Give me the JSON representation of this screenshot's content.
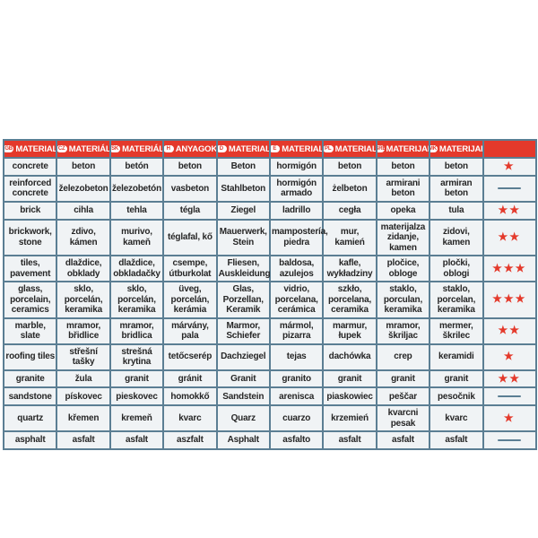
{
  "colors": {
    "header_red": "#e4392b",
    "border_blue_gray": "#5b7e93",
    "cell_bg": "#f0f3f5",
    "text": "#262626",
    "star_red": "#e4392b"
  },
  "table": {
    "headers": [
      {
        "code": "GB",
        "label": "MATERIAL"
      },
      {
        "code": "CZ",
        "label": "MATERIÁL"
      },
      {
        "code": "SK",
        "label": "MATERIÁL"
      },
      {
        "code": "H",
        "label": "ANYAGOK"
      },
      {
        "code": "D",
        "label": "MATERIAL"
      },
      {
        "code": "E",
        "label": "MATERIAL"
      },
      {
        "code": "PL",
        "label": "MATERIAL"
      },
      {
        "code": "SRB",
        "label": "MATERIJAL"
      },
      {
        "code": "MK",
        "label": "MATERIJAL"
      },
      {
        "code": "",
        "label": ""
      }
    ],
    "rows": [
      {
        "cells": [
          "concrete",
          "beton",
          "betón",
          "beton",
          "Beton",
          "hormigón",
          "beton",
          "beton",
          "beton"
        ],
        "rating": 1
      },
      {
        "cells": [
          "reinforced\nconcrete",
          "železobeton",
          "železobetón",
          "vasbeton",
          "Stahlbeton",
          "hormigón\narmado",
          "żelbeton",
          "armirani beton",
          "armiran\nbeton"
        ],
        "rating": 0
      },
      {
        "cells": [
          "brick",
          "cihla",
          "tehla",
          "tégla",
          "Ziegel",
          "ladrillo",
          "cegła",
          "opeka",
          "tula"
        ],
        "rating": 2
      },
      {
        "cells": [
          "brickwork,\nstone",
          "zdivo,\nkámen",
          "murivo,\nkameň",
          "téglafal, kő",
          "Mauerwerk,\nStein",
          "mampostería,\npiedra",
          "mur, kamień",
          "materijalza\nzidanje, kamen",
          "zidovi,\nkamen"
        ],
        "rating": 2
      },
      {
        "cells": [
          "tiles,\npavement",
          "dlaždice,\nobklady",
          "dlaždice,\nobkladačky",
          "csempe,\nútburkolat",
          "Fliesen,\nAuskleidung",
          "baldosa,\nazulejos",
          "kafle,\nwykładziny",
          "pločice,\nobloge",
          "pločki,\noblogi"
        ],
        "rating": 3
      },
      {
        "cells": [
          "glass,\nporcelain,\nceramics",
          "sklo,\nporcelán,\nkeramika",
          "sklo,\nporcelán,\nkeramika",
          "üveg,\nporcelán,\nkerámia",
          "Glas,\nPorzellan,\nKeramik",
          "vidrio,\nporcelana,\ncerámica",
          "szkło,\nporcelana,\nceramika",
          "staklo,\nporculan,\nkeramika",
          "staklo,\nporcelan,\nkeramika"
        ],
        "rating": 3
      },
      {
        "cells": [
          "marble,\nslate",
          "mramor,\nbřidlice",
          "mramor,\nbridlica",
          "márvány,\npala",
          "Marmor,\nSchiefer",
          "mármol,\npizarra",
          "marmur,\nłupek",
          "mramor,\nškriljac",
          "mermer,\nškrilec"
        ],
        "rating": 2
      },
      {
        "cells": [
          "roofing tiles",
          "střešní tašky",
          "strešná krytina",
          "tetőcserép",
          "Dachziegel",
          "tejas",
          "dachówka",
          "crep",
          "keramidi"
        ],
        "rating": 1
      },
      {
        "cells": [
          "granite",
          "žula",
          "granit",
          "gránit",
          "Granit",
          "granito",
          "granit",
          "granit",
          "granit"
        ],
        "rating": 2
      },
      {
        "cells": [
          "sandstone",
          "pískovec",
          "pieskovec",
          "homokkő",
          "Sandstein",
          "arenisca",
          "piaskowiec",
          "peščar",
          "pesočnik"
        ],
        "rating": 0
      },
      {
        "cells": [
          "quartz",
          "křemen",
          "kremeň",
          "kvarc",
          "Quarz",
          "cuarzo",
          "krzemień",
          "kvarcni pesak",
          "kvarc"
        ],
        "rating": 1
      },
      {
        "cells": [
          "asphalt",
          "asfalt",
          "asfalt",
          "aszfalt",
          "Asphalt",
          "asfalto",
          "asfalt",
          "asfalt",
          "asfalt"
        ],
        "rating": 0
      }
    ]
  }
}
